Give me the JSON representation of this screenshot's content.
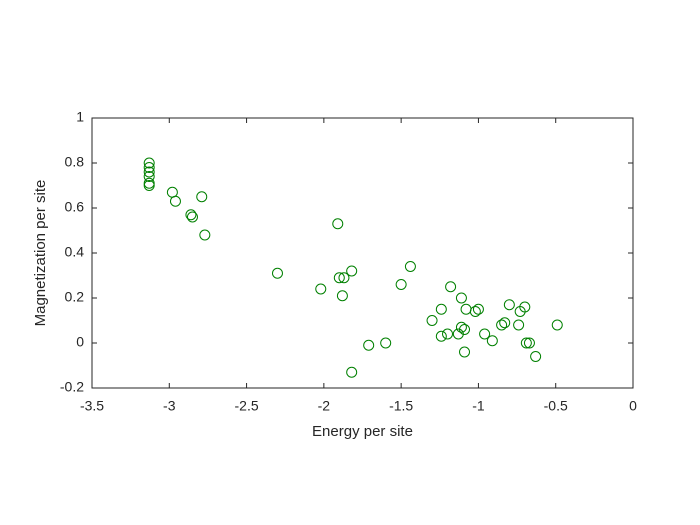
{
  "chart_data": {
    "type": "scatter",
    "x_label": "Energy per site",
    "y_label": "Magnetization per site",
    "series": [
      {
        "color": "#008000",
        "x": [
          -3.13,
          -3.13,
          -3.13,
          -3.13,
          -3.13,
          -3.13,
          -2.98,
          -2.96,
          -2.86,
          -2.85,
          -2.79,
          -2.77,
          -2.3,
          -2.02,
          -1.91,
          -1.9,
          -1.87,
          -1.88,
          -1.82,
          -1.82,
          -1.71,
          -1.6,
          -1.5,
          -1.44,
          -1.3,
          -1.24,
          -1.24,
          -1.2,
          -1.18,
          -1.13,
          -1.11,
          -1.11,
          -1.09,
          -1.09,
          -1.08,
          -1.02,
          -1.0,
          -0.96,
          -0.91,
          -0.85,
          -0.83,
          -0.8,
          -0.74,
          -0.73,
          -0.7,
          -0.69,
          -0.67,
          -0.63,
          -0.49
        ],
        "values": [
          0.8,
          0.78,
          0.76,
          0.74,
          0.71,
          0.7,
          0.67,
          0.63,
          0.57,
          0.56,
          0.65,
          0.48,
          0.31,
          0.24,
          0.53,
          0.29,
          0.29,
          0.21,
          0.32,
          -0.13,
          -0.01,
          0.0,
          0.26,
          0.34,
          0.1,
          0.15,
          0.03,
          0.04,
          0.25,
          0.04,
          0.2,
          0.07,
          0.06,
          -0.04,
          0.15,
          0.14,
          0.15,
          0.04,
          0.01,
          0.08,
          0.09,
          0.17,
          0.08,
          0.14,
          0.16,
          0.0,
          0.0,
          -0.06,
          0.08
        ]
      }
    ],
    "xlim": [
      -3.5,
      0
    ],
    "xticks": [
      -3.5,
      -3,
      -2.5,
      -2,
      -1.5,
      -1,
      -0.5,
      0
    ],
    "ylim": [
      -0.2,
      1
    ],
    "yticks": [
      -0.2,
      0,
      0.2,
      0.4,
      0.6,
      0.8,
      1
    ]
  }
}
